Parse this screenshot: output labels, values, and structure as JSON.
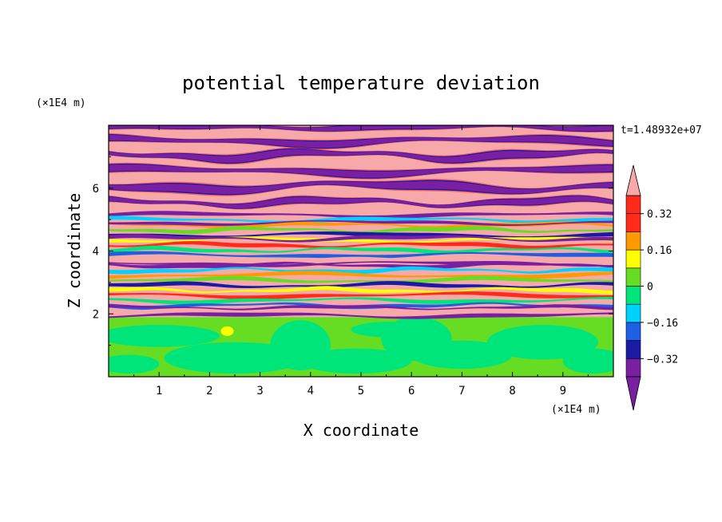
{
  "chart_data": {
    "type": "heatmap",
    "title": "potential temperature deviation",
    "xlabel": "X coordinate",
    "ylabel": "Z coordinate",
    "x_unit": "(×1E4 m)",
    "y_unit": "(×1E4 m)",
    "time_label": "t=1.48932e+07",
    "xlim": [
      0,
      10
    ],
    "ylim": [
      0,
      8
    ],
    "x_ticks": [
      1,
      2,
      3,
      4,
      5,
      6,
      7,
      8,
      9
    ],
    "y_ticks": [
      2,
      4,
      6
    ],
    "x_tick_labels": [
      "1",
      "2",
      "3",
      "4",
      "5",
      "6",
      "7",
      "8",
      "9"
    ],
    "y_tick_labels": [
      "2",
      "4",
      "6"
    ],
    "colorbar": {
      "levels": [
        -0.4,
        -0.32,
        -0.24,
        -0.16,
        -0.08,
        0,
        0.08,
        0.16,
        0.24,
        0.32,
        0.4
      ],
      "colors": [
        "#7b1fa2",
        "#1a1aa6",
        "#1e5fe6",
        "#00d2ff",
        "#00e57a",
        "#66dd22",
        "#ffff00",
        "#ff9900",
        "#ff2a1a",
        "#ff2a1a"
      ],
      "under_color": "#7b1fa2",
      "over_color": "#f7a8a8",
      "tick_values": [
        0.32,
        0.16,
        0,
        -0.16,
        -0.32
      ],
      "tick_labels": [
        "0.32",
        "0.16",
        "0",
        "−0.16",
        "−0.32"
      ]
    },
    "regions": [
      {
        "z_range": [
          0,
          1.9
        ],
        "description": "weak deviation: green / light green mix",
        "dominant_values": [
          -0.08,
          0.08
        ]
      },
      {
        "z_range": [
          1.9,
          5.2
        ],
        "description": "thin horizontal multicolor layers",
        "dominant_values": [
          -0.4,
          0.4
        ]
      },
      {
        "z_range": [
          5.2,
          8
        ],
        "description": "alternating purple and pink horizontal bands",
        "dominant_values": [
          -0.4,
          0.4
        ]
      }
    ]
  }
}
